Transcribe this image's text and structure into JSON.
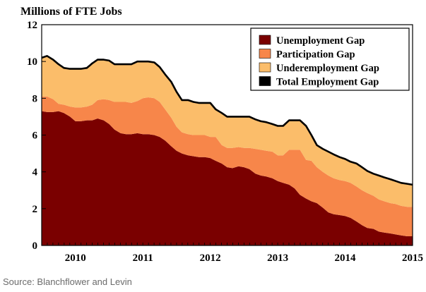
{
  "source_text": "Source: Blanchflower and Levin",
  "chart_data": {
    "type": "area",
    "title": "",
    "ylabel": "Millions of FTE Jobs",
    "xlabel": "",
    "ylim": [
      0,
      12
    ],
    "yticks": [
      0,
      2,
      4,
      6,
      8,
      10,
      12
    ],
    "xlim": [
      2009.5,
      2015.0
    ],
    "xtick_labels": [
      "2010",
      "2011",
      "2012",
      "2013",
      "2014",
      "2015"
    ],
    "grid": false,
    "legend_position": "top-right",
    "colors": {
      "Unemployment Gap": "#7a0000",
      "Participation Gap": "#f7864a",
      "Underemployment Gap": "#fbbd6a",
      "Total Employment Gap": "#000000"
    },
    "x": [
      2009.5,
      2009.58,
      2009.67,
      2009.75,
      2009.83,
      2009.92,
      2010.0,
      2010.08,
      2010.17,
      2010.25,
      2010.33,
      2010.42,
      2010.5,
      2010.58,
      2010.67,
      2010.75,
      2010.83,
      2010.92,
      2011.0,
      2011.08,
      2011.17,
      2011.25,
      2011.33,
      2011.42,
      2011.5,
      2011.58,
      2011.67,
      2011.75,
      2011.83,
      2011.92,
      2012.0,
      2012.08,
      2012.17,
      2012.25,
      2012.33,
      2012.42,
      2012.5,
      2012.58,
      2012.67,
      2012.75,
      2012.83,
      2012.92,
      2013.0,
      2013.08,
      2013.17,
      2013.25,
      2013.33,
      2013.42,
      2013.5,
      2013.58,
      2013.67,
      2013.75,
      2013.83,
      2013.92,
      2014.0,
      2014.08,
      2014.17,
      2014.25,
      2014.33,
      2014.42,
      2014.5,
      2014.58,
      2014.67,
      2014.75,
      2014.83,
      2014.92,
      2015.0
    ],
    "series": [
      {
        "name": "Unemployment Gap",
        "values": [
          7.3,
          7.25,
          7.25,
          7.3,
          7.2,
          7.0,
          6.75,
          6.75,
          6.8,
          6.8,
          6.9,
          6.8,
          6.6,
          6.3,
          6.1,
          6.05,
          6.05,
          6.1,
          6.05,
          6.05,
          6.0,
          5.9,
          5.7,
          5.4,
          5.15,
          5.0,
          4.9,
          4.85,
          4.8,
          4.8,
          4.75,
          4.6,
          4.45,
          4.25,
          4.2,
          4.3,
          4.25,
          4.15,
          3.9,
          3.8,
          3.75,
          3.65,
          3.5,
          3.4,
          3.3,
          3.1,
          2.75,
          2.55,
          2.4,
          2.3,
          2.05,
          1.8,
          1.7,
          1.65,
          1.6,
          1.5,
          1.3,
          1.1,
          0.95,
          0.9,
          0.75,
          0.7,
          0.65,
          0.6,
          0.55,
          0.5,
          0.5
        ]
      },
      {
        "name": "Participation Gap",
        "values": [
          0.8,
          0.85,
          0.7,
          0.4,
          0.45,
          0.55,
          0.75,
          0.75,
          0.75,
          0.85,
          1.0,
          1.15,
          1.3,
          1.5,
          1.7,
          1.75,
          1.7,
          1.75,
          1.95,
          2.0,
          2.0,
          1.9,
          1.7,
          1.55,
          1.3,
          1.15,
          1.15,
          1.15,
          1.2,
          1.2,
          1.15,
          1.3,
          1.0,
          1.05,
          1.1,
          1.05,
          1.05,
          1.15,
          1.35,
          1.4,
          1.4,
          1.45,
          1.4,
          1.5,
          1.9,
          2.1,
          2.45,
          2.1,
          2.2,
          1.95,
          1.95,
          2.0,
          1.95,
          1.9,
          1.9,
          1.9,
          1.9,
          1.9,
          1.9,
          1.8,
          1.75,
          1.7,
          1.65,
          1.65,
          1.6,
          1.6,
          1.6
        ]
      },
      {
        "name": "Underemployment Gap",
        "values": [
          2.1,
          2.2,
          2.15,
          2.15,
          2.0,
          2.05,
          2.1,
          2.1,
          2.1,
          2.25,
          2.2,
          2.15,
          2.15,
          2.05,
          2.05,
          2.05,
          2.1,
          2.15,
          2.0,
          1.95,
          1.95,
          1.9,
          1.9,
          1.95,
          1.9,
          1.75,
          1.85,
          1.8,
          1.75,
          1.75,
          1.85,
          1.5,
          1.75,
          1.7,
          1.7,
          1.65,
          1.7,
          1.7,
          1.6,
          1.55,
          1.55,
          1.5,
          1.6,
          1.6,
          1.6,
          1.6,
          1.6,
          1.85,
          1.4,
          1.2,
          1.25,
          1.3,
          1.3,
          1.25,
          1.2,
          1.15,
          1.25,
          1.25,
          1.2,
          1.2,
          1.3,
          1.3,
          1.3,
          1.25,
          1.25,
          1.25,
          1.2
        ]
      }
    ],
    "total_series": {
      "name": "Total Employment Gap",
      "values": [
        10.2,
        10.3,
        10.1,
        9.85,
        9.65,
        9.6,
        9.6,
        9.6,
        9.65,
        9.9,
        10.1,
        10.1,
        10.05,
        9.85,
        9.85,
        9.85,
        9.85,
        10.0,
        10.0,
        10.0,
        9.95,
        9.7,
        9.3,
        8.9,
        8.35,
        7.9,
        7.9,
        7.8,
        7.75,
        7.75,
        7.75,
        7.4,
        7.2,
        7.0,
        7.0,
        7.0,
        7.0,
        7.0,
        6.85,
        6.75,
        6.7,
        6.6,
        6.5,
        6.5,
        6.8,
        6.8,
        6.8,
        6.5,
        6.0,
        5.45,
        5.25,
        5.1,
        4.95,
        4.8,
        4.7,
        4.55,
        4.45,
        4.25,
        4.05,
        3.9,
        3.8,
        3.7,
        3.6,
        3.5,
        3.4,
        3.35,
        3.3
      ]
    }
  }
}
